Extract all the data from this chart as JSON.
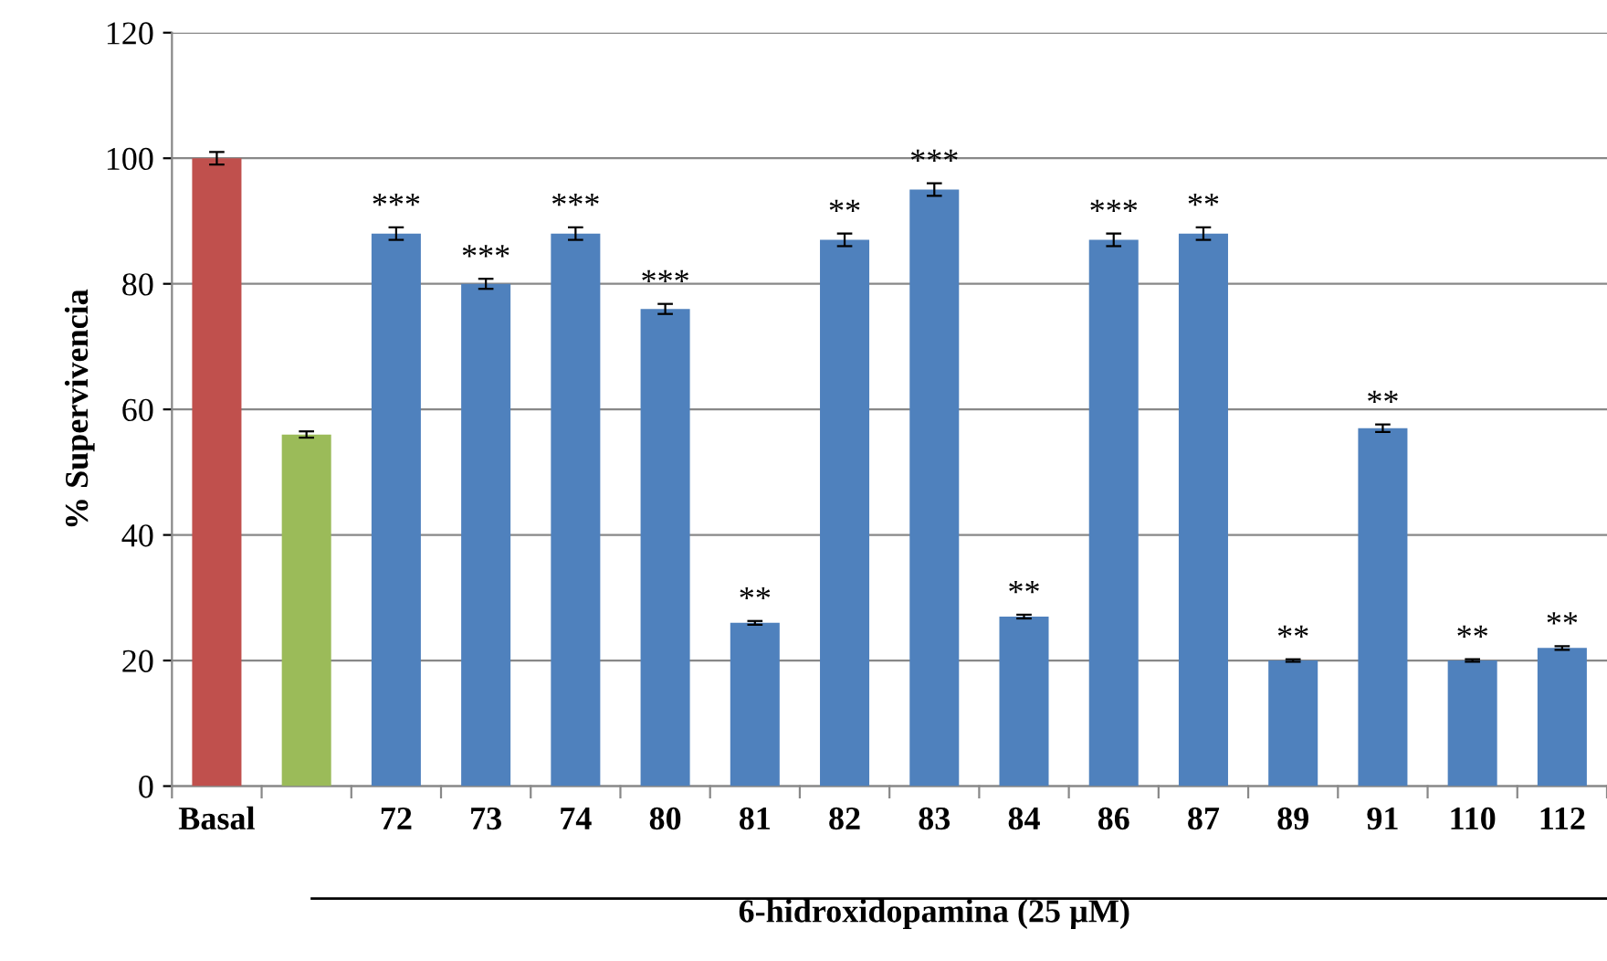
{
  "chart_data": {
    "type": "bar",
    "ylabel": "% Supervivencia",
    "xlabel": "6-hidroxidopamina (25 µM)",
    "categories": [
      "Basal",
      null,
      "72",
      "73",
      "74",
      "80",
      "81",
      "82",
      "83",
      "84",
      "86",
      "87",
      "89",
      "91",
      "110",
      "112"
    ],
    "values": [
      100,
      56,
      88,
      80,
      88,
      76,
      26,
      87,
      95,
      27,
      87,
      88,
      20,
      57,
      20,
      22
    ],
    "errors": [
      1,
      0.5,
      1,
      0.8,
      1,
      0.8,
      0.3,
      1,
      1,
      0.3,
      1,
      1,
      0.2,
      0.6,
      0.2,
      0.3
    ],
    "colors": [
      "#c0504d",
      "#9bbb59",
      "#4f81bd",
      "#4f81bd",
      "#4f81bd",
      "#4f81bd",
      "#4f81bd",
      "#4f81bd",
      "#4f81bd",
      "#4f81bd",
      "#4f81bd",
      "#4f81bd",
      "#4f81bd",
      "#4f81bd",
      "#4f81bd",
      "#4f81bd"
    ],
    "ylim": [
      0,
      120
    ],
    "yticks": [
      0,
      20,
      40,
      60,
      80,
      100,
      120
    ],
    "grid": "y",
    "annotations": [
      {
        "text": "***",
        "x": "72",
        "y": 89
      },
      {
        "text": "***",
        "x": "73",
        "y": 80.8
      },
      {
        "text": "***",
        "x": "74",
        "y": 89
      },
      {
        "text": "***",
        "x": "80",
        "y": 76.8
      },
      {
        "text": "**",
        "x": "81",
        "y": 26.3
      },
      {
        "text": "**",
        "x": "82",
        "y": 88
      },
      {
        "text": "***",
        "x": "83",
        "y": 96
      },
      {
        "text": "**",
        "x": "84",
        "y": 27.3
      },
      {
        "text": "***",
        "x": "86",
        "y": 88
      },
      {
        "text": "**",
        "x": "87",
        "y": 89
      },
      {
        "text": "**",
        "x": "89",
        "y": 20.2
      },
      {
        "text": "**",
        "x": "91",
        "y": 57.6
      },
      {
        "text": "**",
        "x": "110",
        "y": 20.2
      },
      {
        "text": "**",
        "x": "112",
        "y": 22.3
      }
    ]
  }
}
